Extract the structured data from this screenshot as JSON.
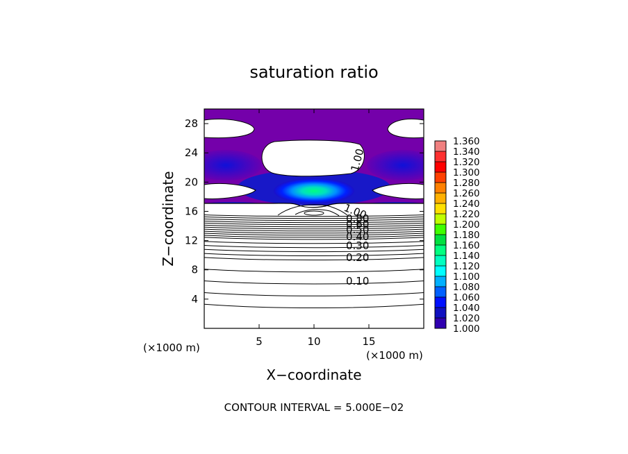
{
  "chart_data": {
    "type": "contour",
    "title": "saturation ratio",
    "xlabel": "X−coordinate",
    "ylabel": "Z−coordinate",
    "x_unit_label": "(×1000 m)",
    "y_unit_label": "(×1000 m)",
    "xlim": [
      0,
      20
    ],
    "ylim": [
      0,
      30
    ],
    "x_ticks": [
      5,
      10,
      15
    ],
    "y_ticks": [
      4,
      8,
      12,
      16,
      20,
      24,
      28
    ],
    "contour_interval_text": "CONTOUR INTERVAL = 5.000E−02",
    "contour_labels": [
      {
        "text": "0.10",
        "x": 13.9,
        "z": 6.6
      },
      {
        "text": "0.20",
        "x": 13.9,
        "z": 9.7
      },
      {
        "text": "0.30",
        "x": 13.9,
        "z": 11.3
      },
      {
        "text": "0.40",
        "x": 13.9,
        "z": 12.5
      },
      {
        "text": "0.50",
        "x": 13.9,
        "z": 13.4
      },
      {
        "text": "0.60",
        "x": 13.9,
        "z": 14.0
      },
      {
        "text": "0.80",
        "x": 13.9,
        "z": 14.6
      },
      {
        "text": "1.00",
        "x": 13.2,
        "z": 16.2
      },
      {
        "text": "1.00",
        "x": 13.6,
        "z": 23.2
      }
    ],
    "colorbar": {
      "min": 1.0,
      "max": 1.36,
      "labels": [
        "1.360",
        "1.340",
        "1.320",
        "1.300",
        "1.280",
        "1.260",
        "1.240",
        "1.220",
        "1.200",
        "1.180",
        "1.160",
        "1.140",
        "1.120",
        "1.100",
        "1.080",
        "1.060",
        "1.040",
        "1.020",
        "1.000"
      ],
      "colors": [
        "#f08080",
        "#ff3030",
        "#ff0000",
        "#ff4000",
        "#ff8000",
        "#ffb000",
        "#ffe000",
        "#c0ff00",
        "#40ff00",
        "#00e040",
        "#00ff80",
        "#00ffc0",
        "#00ffff",
        "#00b0ff",
        "#0060ff",
        "#0010ff",
        "#1010c0",
        "#3000b0",
        "#7000a8"
      ]
    },
    "grid": false,
    "legend_position": "right"
  }
}
